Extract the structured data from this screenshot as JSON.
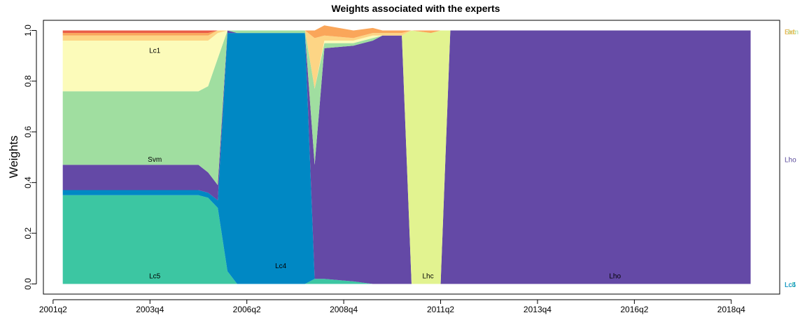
{
  "chart_data": {
    "type": "area",
    "title": "Weights associated with the experts",
    "xlabel": "",
    "ylabel": "Weights",
    "ylim": [
      0,
      1
    ],
    "yticks": [
      "0.0",
      "0.2",
      "0.4",
      "0.6",
      "0.8",
      "1.0"
    ],
    "xticks": [
      {
        "q": 0,
        "label": "2001q2"
      },
      {
        "q": 10,
        "label": "2003q4"
      },
      {
        "q": 20,
        "label": "2006q2"
      },
      {
        "q": 30,
        "label": "2008q4"
      },
      {
        "q": 40,
        "label": "2011q2"
      },
      {
        "q": 50,
        "label": "2013q4"
      },
      {
        "q": 60,
        "label": "2016q2"
      },
      {
        "q": 70,
        "label": "2018q4"
      }
    ],
    "xlim_q": [
      -1,
      75
    ],
    "x_q": [
      1,
      15,
      16,
      17,
      18,
      19,
      25,
      26,
      27,
      28,
      31,
      33,
      34,
      36,
      37,
      39,
      40,
      41,
      72
    ],
    "series": [
      {
        "name": "Lc5",
        "color": "#3cc6a2",
        "values": [
          0.35,
          0.35,
          0.34,
          0.3,
          0.05,
          0.0,
          0.0,
          0.0,
          0.02,
          0.02,
          0.01,
          0.0,
          0.0,
          0.0,
          0.0,
          0.0,
          0.0,
          0.0,
          0.0
        ]
      },
      {
        "name": "Lc4",
        "color": "#0088c4",
        "values": [
          0.02,
          0.02,
          0.02,
          0.03,
          0.94,
          0.99,
          0.99,
          0.99,
          0.0,
          0.0,
          0.0,
          0.0,
          0.0,
          0.0,
          0.0,
          0.0,
          0.0,
          0.0,
          0.0
        ]
      },
      {
        "name": "Lho",
        "color": "#6449a6",
        "values": [
          0.1,
          0.1,
          0.08,
          0.06,
          0.01,
          0.0,
          0.0,
          0.0,
          0.45,
          0.91,
          0.93,
          0.96,
          0.98,
          0.98,
          0.0,
          0.0,
          0.0,
          1.0,
          1.0
        ]
      },
      {
        "name": "Lhc",
        "color": "#e2f390",
        "values": [
          0.0,
          0.0,
          0.0,
          0.0,
          0.0,
          0.0,
          0.0,
          0.0,
          0.0,
          0.0,
          0.0,
          0.0,
          0.0,
          0.0,
          1.0,
          0.99,
          1.0,
          0.0,
          0.0
        ]
      },
      {
        "name": "Svm",
        "color": "#a0dea0",
        "values": [
          0.29,
          0.29,
          0.34,
          0.5,
          0.0,
          0.01,
          0.01,
          0.01,
          0.3,
          0.02,
          0.01,
          0.01,
          0.0,
          0.0,
          0.0,
          0.0,
          0.0,
          0.0,
          0.0
        ]
      },
      {
        "name": "Lc1",
        "color": "#fcfbba",
        "values": [
          0.2,
          0.2,
          0.18,
          0.1,
          0.0,
          0.0,
          0.0,
          0.0,
          0.0,
          0.01,
          0.01,
          0.01,
          0.0,
          0.0,
          0.0,
          0.0,
          0.0,
          0.0,
          0.0
        ]
      },
      {
        "name": "",
        "color": "#fdd585",
        "values": [
          0.02,
          0.02,
          0.02,
          0.01,
          0.0,
          0.0,
          0.0,
          0.0,
          0.2,
          0.02,
          0.01,
          0.01,
          0.01,
          0.01,
          0.0,
          0.0,
          0.0,
          0.0,
          0.0
        ]
      },
      {
        "name": "",
        "color": "#faa65a",
        "values": [
          0.01,
          0.01,
          0.01,
          0.0,
          0.0,
          0.0,
          0.0,
          0.0,
          0.03,
          0.04,
          0.03,
          0.02,
          0.01,
          0.01,
          0.0,
          0.01,
          0.0,
          0.0,
          0.0
        ]
      },
      {
        "name": "",
        "color": "#ea5d47",
        "values": [
          0.01,
          0.01,
          0.01,
          0.0,
          0.0,
          0.0,
          0.0,
          0.0,
          0.0,
          0.0,
          0.0,
          0.0,
          0.0,
          0.0,
          0.0,
          0.0,
          0.0,
          0.0,
          0.0
        ]
      }
    ],
    "area_labels": [
      {
        "text": "Lc1",
        "q": 10.5,
        "y": 0.92
      },
      {
        "text": "Svm",
        "q": 10.5,
        "y": 0.49
      },
      {
        "text": "Lc5",
        "q": 10.5,
        "y": 0.03
      },
      {
        "text": "Lc4",
        "q": 23.5,
        "y": 0.07
      },
      {
        "text": "Lhc",
        "q": 38.7,
        "y": 0.03
      },
      {
        "text": "Lho",
        "q": 58,
        "y": 0.03
      }
    ],
    "right_labels": [
      {
        "text": "Lho",
        "y": 0.49,
        "color": "#5a4a9a"
      },
      {
        "text": "Lc5",
        "y": -0.003,
        "color": "#3cc6a2"
      },
      {
        "text": "Lc4",
        "y": -0.003,
        "color": "#0088c4"
      },
      {
        "text": "Svm",
        "y": 0.995,
        "color": "#a0dea0"
      },
      {
        "text": "Lc1",
        "y": 0.995,
        "color": "#e8e4a0"
      },
      {
        "text": "Lhc",
        "y": 0.995,
        "color": "#d0d880"
      },
      {
        "text": "Ext",
        "y": 0.995,
        "color": "#f0b050"
      }
    ]
  }
}
